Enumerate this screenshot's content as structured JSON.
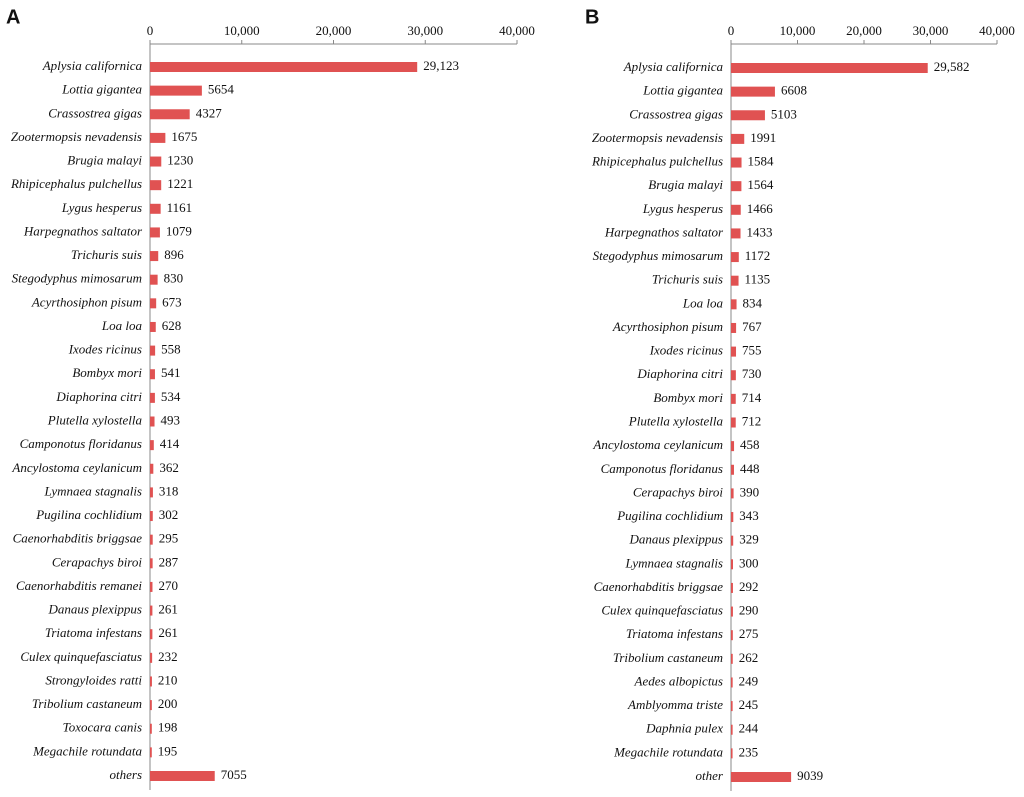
{
  "chart_data": [
    {
      "type": "bar",
      "label": "A",
      "color": "#e05252",
      "categories": [
        "Aplysia californica",
        "Lottia gigantea",
        "Crassostrea gigas",
        "Zootermopsis nevadensis",
        "Brugia malayi",
        "Rhipicephalus pulchellus",
        "Lygus hesperus",
        "Harpegnathos saltator",
        "Trichuris suis",
        "Stegodyphus mimosarum",
        "Acyrthosiphon pisum",
        "Loa loa",
        "Ixodes ricinus",
        "Bombyx mori",
        "Diaphorina citri",
        "Plutella xylostella",
        "Camponotus floridanus",
        "Ancylostoma ceylanicum",
        "Lymnaea stagnalis",
        "Pugilina cochlidium",
        "Caenorhabditis briggsae",
        "Cerapachys biroi",
        "Caenorhabditis remanei",
        "Danaus plexippus",
        "Triatoma infestans",
        "Culex quinquefasciatus",
        "Strongyloides ratti",
        "Tribolium castaneum",
        "Toxocara canis",
        "Megachile rotundata",
        "others"
      ],
      "values": [
        29123,
        5654,
        4327,
        1675,
        1230,
        1221,
        1161,
        1079,
        896,
        830,
        673,
        628,
        558,
        541,
        534,
        493,
        414,
        362,
        318,
        302,
        295,
        287,
        270,
        261,
        261,
        232,
        210,
        200,
        198,
        195,
        7055
      ],
      "value_labels": [
        "29,123",
        "5654",
        "4327",
        "1675",
        "1230",
        "1221",
        "1161",
        "1079",
        "896",
        "830",
        "673",
        "628",
        "558",
        "541",
        "534",
        "493",
        "414",
        "362",
        "318",
        "302",
        "295",
        "287",
        "270",
        "261",
        "261",
        "232",
        "210",
        "200",
        "198",
        "195",
        "7055"
      ],
      "xlim": [
        0,
        40000
      ],
      "xticks": [
        0,
        {
          "value": 10000,
          "label": "10,000"
        },
        {
          "value": 20000,
          "label": "20,000"
        },
        {
          "value": 30000,
          "label": "30,000"
        },
        {
          "value": 40000,
          "label": "40,000"
        }
      ]
    },
    {
      "type": "bar",
      "label": "B",
      "color": "#e05252",
      "categories": [
        "Aplysia californica",
        "Lottia gigantea",
        "Crassostrea gigas",
        "Zootermopsis nevadensis",
        "Rhipicephalus pulchellus",
        "Brugia malayi",
        "Lygus hesperus",
        "Harpegnathos saltator",
        "Stegodyphus mimosarum",
        "Trichuris suis",
        "Loa loa",
        "Acyrthosiphon pisum",
        "Ixodes ricinus",
        "Diaphorina citri",
        "Bombyx mori",
        "Plutella xylostella",
        "Ancylostoma ceylanicum",
        "Camponotus floridanus",
        "Cerapachys biroi",
        "Pugilina cochlidium",
        "Danaus plexippus",
        "Lymnaea stagnalis",
        "Caenorhabditis briggsae",
        "Culex quinquefasciatus",
        "Triatoma infestans",
        "Tribolium castaneum",
        "Aedes albopictus",
        "Amblyomma triste",
        "Daphnia pulex",
        "Megachile rotundata",
        "other"
      ],
      "values": [
        29582,
        6608,
        5103,
        1991,
        1584,
        1564,
        1466,
        1433,
        1172,
        1135,
        834,
        767,
        755,
        730,
        714,
        712,
        458,
        448,
        390,
        343,
        329,
        300,
        292,
        290,
        275,
        262,
        249,
        245,
        244,
        235,
        9039
      ],
      "value_labels": [
        "29,582",
        "6608",
        "5103",
        "1991",
        "1584",
        "1564",
        "1466",
        "1433",
        "1172",
        "1135",
        "834",
        "767",
        "755",
        "730",
        "714",
        "712",
        "458",
        "448",
        "390",
        "343",
        "329",
        "300",
        "292",
        "290",
        "275",
        "262",
        "249",
        "245",
        "244",
        "235",
        "9039"
      ],
      "xlim": [
        0,
        40000
      ],
      "xticks": [
        0,
        {
          "value": 10000,
          "label": "10,000"
        },
        {
          "value": 20000,
          "label": "20,000"
        },
        {
          "value": 30000,
          "label": "30,000"
        },
        {
          "value": 40000,
          "label": "40,000"
        }
      ]
    }
  ]
}
